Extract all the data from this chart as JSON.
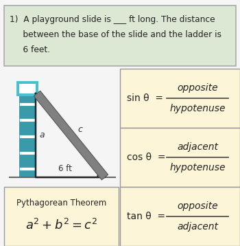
{
  "title_box_text_line1": "1)  A playground slide is ___ ft long. The distance",
  "title_box_text_line2": "     between the base of the slide and the ladder is",
  "title_box_text_line3": "     6 feet.",
  "title_box_bg": "#dce8d4",
  "title_box_border": "#aaaaaa",
  "formula_box_bg": "#fdf5d8",
  "formula_box_border": "#999999",
  "sin_lhs": "sin θ  =",
  "sin_num": "opposite",
  "sin_den": "hypotenuse",
  "cos_lhs": "cos θ  =",
  "cos_num": "adjacent",
  "cos_den": "hypotenuse",
  "tan_lhs": "tan θ  =",
  "tan_num": "opposite",
  "tan_den": "adjacent",
  "pyth_label": "Pythagorean Theorem",
  "pyth_formula": "$a^2+ b^2=c^2$",
  "teal_light": "#4bbfcf",
  "teal_dark": "#3a9aaa",
  "ramp_color": "#808080",
  "ramp_edge": "#555555",
  "ground_color": "#666666",
  "triangle_color": "#222222",
  "label_a": "a",
  "label_c": "c",
  "label_6ft": "6 ft",
  "bg_color": "#f5f5f5",
  "text_color": "#222222"
}
